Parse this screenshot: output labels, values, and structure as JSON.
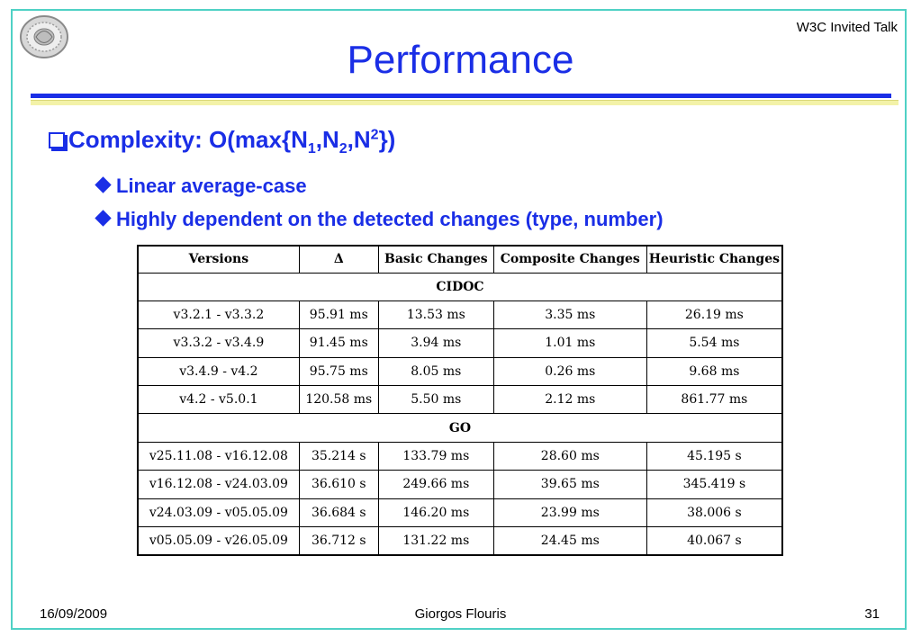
{
  "header": {
    "corner_note": "W3C Invited Talk",
    "title": "Performance"
  },
  "bullets": {
    "main": "Complexity: O(max{N1,N2,N2})",
    "sub": [
      "Linear average-case",
      "Highly dependent on the detected changes (type, number)"
    ]
  },
  "table": {
    "headers": [
      "Versions",
      "Δ",
      "Basic Changes",
      "Composite Changes",
      "Heuristic Changes"
    ],
    "groups": [
      {
        "name": "CIDOC",
        "rows": [
          [
            "v3.2.1 - v3.3.2",
            "95.91 ms",
            "13.53 ms",
            "3.35 ms",
            "26.19 ms"
          ],
          [
            "v3.3.2 - v3.4.9",
            "91.45 ms",
            "3.94 ms",
            "1.01 ms",
            "5.54 ms"
          ],
          [
            "v3.4.9 - v4.2",
            "95.75 ms",
            "8.05 ms",
            "0.26 ms",
            "9.68 ms"
          ],
          [
            "v4.2 - v5.0.1",
            "120.58 ms",
            "5.50 ms",
            "2.12 ms",
            "861.77 ms"
          ]
        ]
      },
      {
        "name": "GO",
        "rows": [
          [
            "v25.11.08 - v16.12.08",
            "35.214 s",
            "133.79 ms",
            "28.60 ms",
            "45.195 s"
          ],
          [
            "v16.12.08 - v24.03.09",
            "36.610 s",
            "249.66 ms",
            "39.65 ms",
            "345.419 s"
          ],
          [
            "v24.03.09 - v05.05.09",
            "36.684 s",
            "146.20 ms",
            "23.99 ms",
            "38.006 s"
          ],
          [
            "v05.05.09 - v26.05.09",
            "36.712 s",
            "131.22 ms",
            "24.45 ms",
            "40.067 s"
          ]
        ]
      }
    ]
  },
  "footer": {
    "date": "16/09/2009",
    "author": "Giorgos Flouris",
    "page": "31"
  },
  "icons": {
    "logo": "university-seal-icon",
    "bullet_main": "checkbox-bullet-icon",
    "bullet_sub": "diamond-bullet-icon"
  }
}
